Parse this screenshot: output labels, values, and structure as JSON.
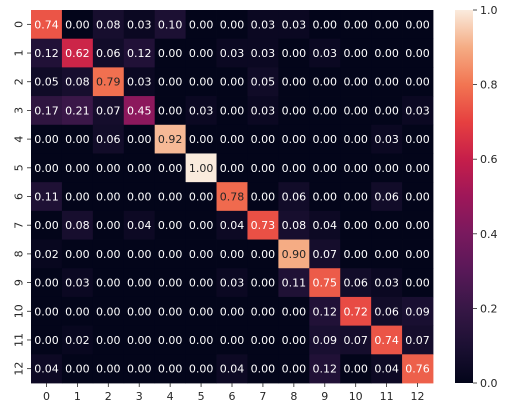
{
  "chart_data": {
    "type": "heatmap",
    "title": "",
    "xlabel": "",
    "ylabel": "",
    "x_categories": [
      "0",
      "1",
      "2",
      "3",
      "4",
      "5",
      "6",
      "7",
      "8",
      "9",
      "10",
      "11",
      "12"
    ],
    "y_categories": [
      "0",
      "1",
      "2",
      "3",
      "4",
      "5",
      "6",
      "7",
      "8",
      "9",
      "10",
      "11",
      "12"
    ],
    "values": [
      [
        0.74,
        0.0,
        0.08,
        0.03,
        0.1,
        0.0,
        0.0,
        0.03,
        0.03,
        0.0,
        0.0,
        0.0,
        0.0
      ],
      [
        0.12,
        0.62,
        0.06,
        0.12,
        0.0,
        0.0,
        0.03,
        0.03,
        0.0,
        0.03,
        0.0,
        0.0,
        0.0
      ],
      [
        0.05,
        0.08,
        0.79,
        0.03,
        0.0,
        0.0,
        0.0,
        0.05,
        0.0,
        0.0,
        0.0,
        0.0,
        0.0
      ],
      [
        0.17,
        0.21,
        0.07,
        0.45,
        0.0,
        0.03,
        0.0,
        0.03,
        0.0,
        0.0,
        0.0,
        0.0,
        0.03
      ],
      [
        0.0,
        0.0,
        0.06,
        0.0,
        0.92,
        0.0,
        0.0,
        0.0,
        0.0,
        0.0,
        0.0,
        0.03,
        0.0
      ],
      [
        0.0,
        0.0,
        0.0,
        0.0,
        0.0,
        1.0,
        0.0,
        0.0,
        0.0,
        0.0,
        0.0,
        0.0,
        0.0
      ],
      [
        0.11,
        0.0,
        0.0,
        0.0,
        0.0,
        0.0,
        0.78,
        0.0,
        0.06,
        0.0,
        0.0,
        0.06,
        0.0
      ],
      [
        0.0,
        0.08,
        0.0,
        0.04,
        0.0,
        0.0,
        0.04,
        0.73,
        0.08,
        0.04,
        0.0,
        0.0,
        0.0
      ],
      [
        0.02,
        0.0,
        0.0,
        0.0,
        0.0,
        0.0,
        0.0,
        0.0,
        0.9,
        0.07,
        0.0,
        0.0,
        0.0
      ],
      [
        0.0,
        0.03,
        0.0,
        0.0,
        0.0,
        0.0,
        0.03,
        0.0,
        0.11,
        0.75,
        0.06,
        0.03,
        0.0
      ],
      [
        0.0,
        0.0,
        0.0,
        0.0,
        0.0,
        0.0,
        0.0,
        0.0,
        0.0,
        0.12,
        0.72,
        0.06,
        0.09
      ],
      [
        0.0,
        0.02,
        0.0,
        0.0,
        0.0,
        0.0,
        0.0,
        0.0,
        0.0,
        0.09,
        0.07,
        0.74,
        0.07
      ],
      [
        0.04,
        0.0,
        0.0,
        0.0,
        0.0,
        0.0,
        0.04,
        0.0,
        0.0,
        0.12,
        0.0,
        0.04,
        0.76
      ]
    ],
    "value_format": "0.00",
    "vmin": 0,
    "vmax": 1,
    "colorbar_ticks": [
      "0.0",
      "0.2",
      "0.4",
      "0.6",
      "0.8",
      "1.0"
    ],
    "colormap": "rocket",
    "grid": false
  }
}
